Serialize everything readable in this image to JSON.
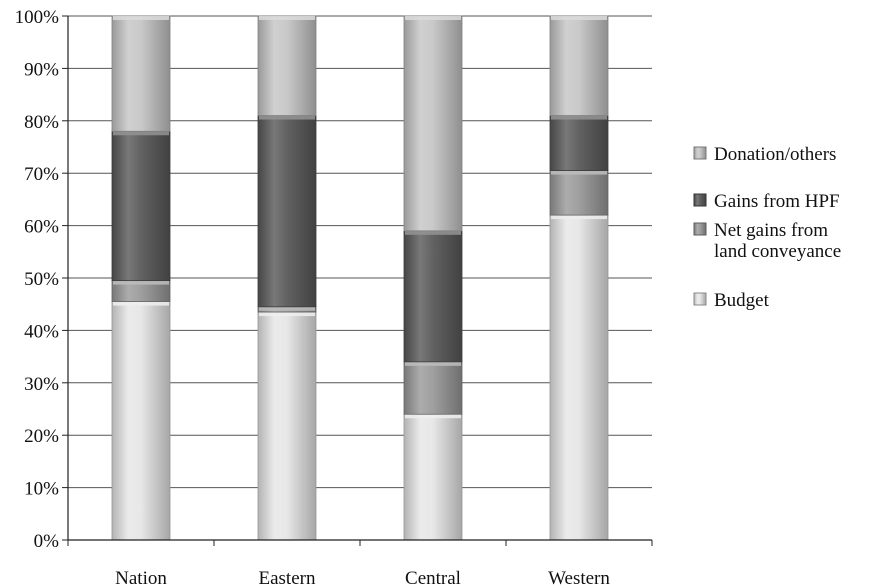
{
  "chart_data": {
    "type": "bar",
    "stacked": true,
    "categories": [
      "Nation",
      "Eastern",
      "Central",
      "Western"
    ],
    "series": [
      {
        "name": "Budget",
        "values": [
          45.5,
          43.5,
          24,
          62
        ],
        "color": "#e6e6e6"
      },
      {
        "name": "Net gains from land conveyance",
        "values": [
          4,
          1,
          10,
          8.5
        ],
        "color": "#9a9a9a"
      },
      {
        "name": "Gains from HPF",
        "values": [
          28.5,
          36.5,
          25,
          10.5
        ],
        "color": "#5a5a5a"
      },
      {
        "name": "Donation/others",
        "values": [
          22,
          19,
          41,
          19
        ],
        "color": "#c6c6c6"
      }
    ],
    "y_ticks": [
      "0%",
      "10%",
      "20%",
      "30%",
      "40%",
      "50%",
      "60%",
      "70%",
      "80%",
      "90%",
      "100%"
    ],
    "ylim": [
      0,
      100
    ],
    "grid": true,
    "legend": {
      "placement": "right",
      "entries": [
        {
          "series": "Donation/others",
          "lines": [
            "Donation/others"
          ]
        },
        {
          "series": "Gains from HPF",
          "lines": [
            "Gains from HPF"
          ]
        },
        {
          "series": "Net gains from land conveyance",
          "lines": [
            "Net gains from",
            "land conveyance"
          ]
        },
        {
          "series": "Budget",
          "lines": [
            "Budget"
          ]
        }
      ]
    }
  }
}
